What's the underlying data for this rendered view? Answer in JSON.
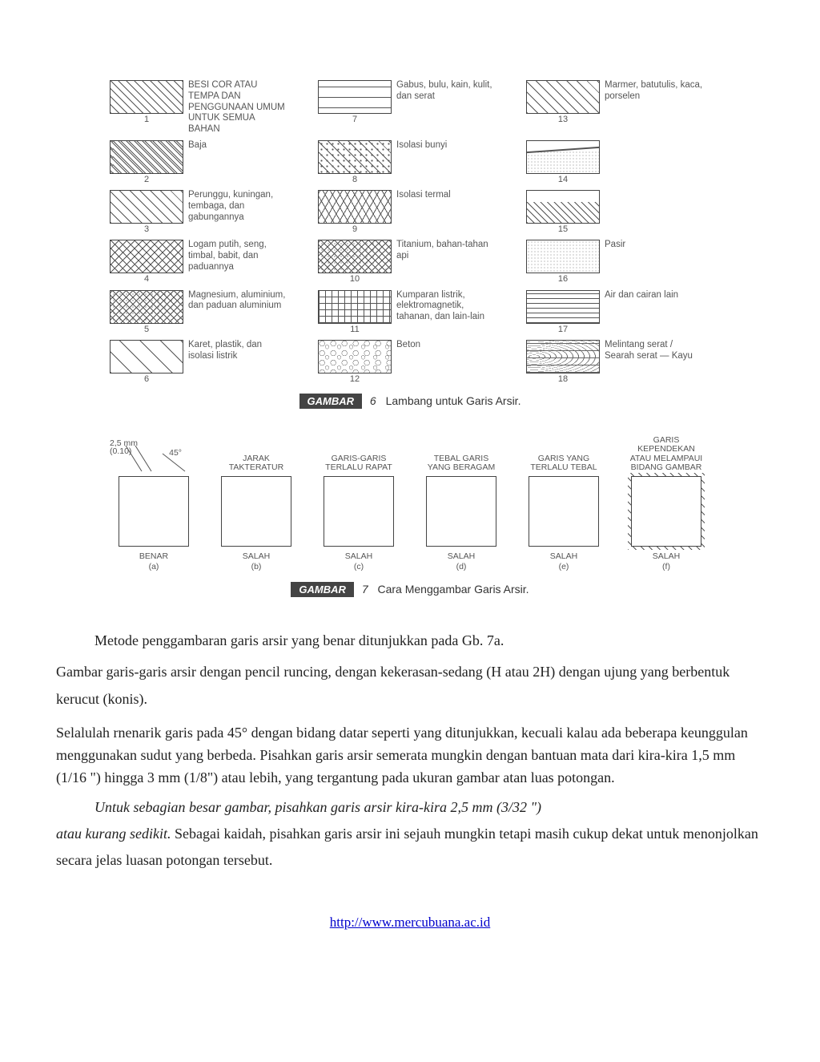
{
  "figure6": {
    "caption_tag": "GAMBAR",
    "caption_no": "6",
    "caption_text": "Lambang untuk Garis Arsir.",
    "items": [
      {
        "n": "1",
        "label": "BESI COR ATAU TEMPA DAN PENGGUNAAN UMUM UNTUK SEMUA BAHAN",
        "hatch": "h-diag45"
      },
      {
        "n": "7",
        "label": "Gabus, bulu, kain, kulit, dan serat",
        "hatch": "h-dash"
      },
      {
        "n": "13",
        "label": "Marmer, batutulis, kaca, porselen",
        "hatch": "h-dashdiag"
      },
      {
        "n": "2",
        "label": "Baja",
        "hatch": "h-dbldiag"
      },
      {
        "n": "8",
        "label": "Isolasi bunyi",
        "hatch": "h-dots"
      },
      {
        "n": "14",
        "label": "",
        "hatch": "h-sandline"
      },
      {
        "n": "3",
        "label": "Perunggu, kuningan, tembaga, dan gabungannya",
        "hatch": "h-diag45dash"
      },
      {
        "n": "9",
        "label": "Isolasi termal",
        "hatch": "h-zig"
      },
      {
        "n": "15",
        "label": "",
        "hatch": "h-rock"
      },
      {
        "n": "4",
        "label": "Logam putih, seng, timbal, babit, dan paduannya",
        "hatch": "h-cross"
      },
      {
        "n": "10",
        "label": "Titanium, bahan-tahan api",
        "hatch": "h-crossd"
      },
      {
        "n": "16",
        "label": "Pasir",
        "hatch": "h-sand"
      },
      {
        "n": "5",
        "label": "Magnesium, aluminium, dan paduan aluminium",
        "hatch": "h-crossd"
      },
      {
        "n": "11",
        "label": "Kumparan listrik, elektromagnetik, tahanan, dan lain-lain",
        "hatch": "h-grid"
      },
      {
        "n": "17",
        "label": "Air dan cairan lain",
        "hatch": "h-horiz"
      },
      {
        "n": "6",
        "label": "Karet, plastik, dan isolasi listrik",
        "hatch": "h-diag45w"
      },
      {
        "n": "12",
        "label": "Beton",
        "hatch": "h-pebble"
      },
      {
        "n": "18",
        "label": "Melintang serat / Searah serat — Kayu",
        "hatch": "h-wood"
      }
    ]
  },
  "figure7": {
    "caption_tag": "GAMBAR",
    "caption_no": "7",
    "caption_text": "Cara Menggambar Garis Arsir.",
    "dim_label_mm": "2,5 mm",
    "dim_label_in": "(0.10)",
    "dim_angle": "45°",
    "cols": [
      {
        "top": "",
        "bot1": "BENAR",
        "bot2": "(a)",
        "hatch": "h-diag45",
        "extra": ""
      },
      {
        "top": "JARAK TAKTERATUR",
        "bot1": "SALAH",
        "bot2": "(b)",
        "hatch": "h-diag45b",
        "extra": ""
      },
      {
        "top": "GARIS-GARIS TERLALU RAPAT",
        "bot1": "SALAH",
        "bot2": "(c)",
        "hatch": "h-diag45t",
        "extra": ""
      },
      {
        "top": "TEBAL GARIS YANG BERAGAM",
        "bot1": "SALAH",
        "bot2": "(d)",
        "hatch": "h-diag45",
        "extra": ""
      },
      {
        "top": "GARIS YANG TERLALU TEBAL",
        "bot1": "SALAH",
        "bot2": "(e)",
        "hatch": "h-diag45m",
        "extra": ""
      },
      {
        "top": "GARIS KEPENDEKAN ATAU MELAMPAUI BIDANG GAMBAR",
        "bot1": "SALAH",
        "bot2": "(f)",
        "hatch": "h-diag45",
        "extra": "overshoot"
      }
    ]
  },
  "body": {
    "p1": "Metode penggambaran garis arsir yang benar ditunjukkan pada Gb. 7a.",
    "p2": "Gambar garis-garis arsir dengan pencil runcing, dengan kekerasan-sedang (H atau 2H) dengan ujung yang berbentuk kerucut (konis).",
    "p3": "Selalulah rnenarik garis pada 45° dengan bidang datar seperti yang ditunjukkan, kecuali kalau ada beberapa keunggulan menggunakan sudut yang berbeda. Pisahkan garis arsir semerata mungkin dengan bantuan mata dari kira-kira 1,5 mm (1/16 \") hingga 3 mm (1/8\") atau lebih, yang tergantung pada ukuran gambar atan luas potongan.",
    "p4a": "Untuk sebagian besar gambar, pisahkan garis arsir kira-kira 2,5 mm (3/32 \")",
    "p4b": "atau kurang sedikit.",
    "p4c": " Sebagai kaidah, pisahkan garis arsir ini sejauh mungkin tetapi masih cukup dekat untuk menonjolkan secara jelas luasan potongan tersebut."
  },
  "footer_link": "http://www.mercubuana.ac.id"
}
